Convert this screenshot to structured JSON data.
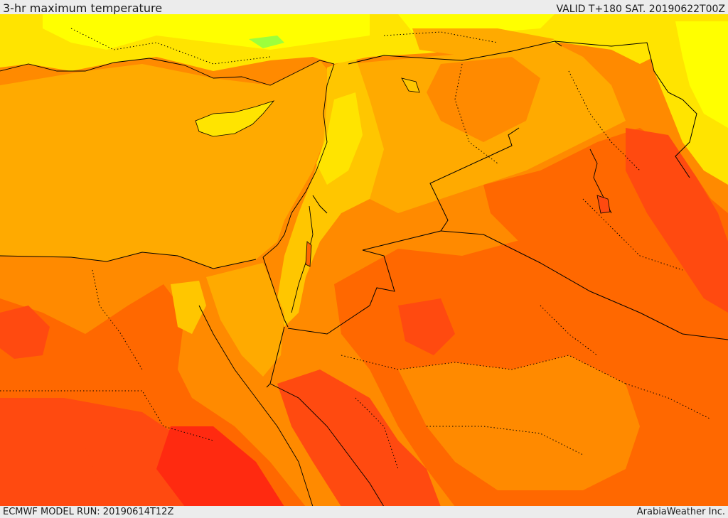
{
  "header": {
    "title": "3-hr maximum temperature",
    "valid": "VALID T+180 SAT. 20190622T00Z"
  },
  "footer": {
    "model_run": "ECMWF MODEL RUN: 20190614T12Z",
    "credit": "ArabiaWeather Inc."
  },
  "palette": {
    "cool_yellow": "#ffff00",
    "light_yellow": "#ffe400",
    "yellow_orange": "#ffc600",
    "orange": "#ffaa00",
    "dark_orange": "#ff8a00",
    "red_orange": "#ff6800",
    "red": "#ff4a10",
    "deep_red": "#ff2a10",
    "green_patch": "#9dff3c",
    "border": "#000000"
  },
  "map": {
    "region": "Eastern Mediterranean and Middle East",
    "field": "3-hr maximum temperature"
  }
}
